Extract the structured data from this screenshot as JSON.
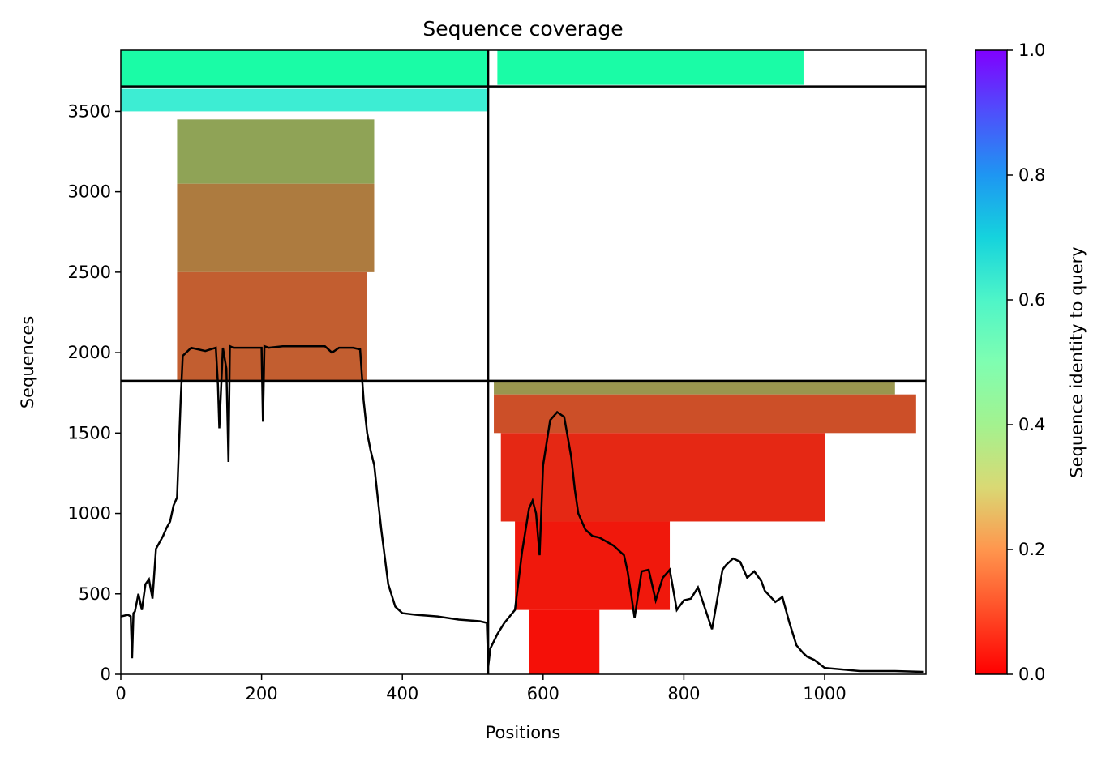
{
  "chart_data": {
    "type": "heatmap",
    "title": "Sequence coverage",
    "xlabel": "Positions",
    "ylabel": "Sequences",
    "xlim": [
      0,
      1144
    ],
    "ylim": [
      0,
      3880
    ],
    "xticks": [
      0,
      200,
      400,
      600,
      800,
      1000
    ],
    "yticks": [
      0,
      500,
      1000,
      1500,
      2000,
      2500,
      3000,
      3500
    ],
    "colorbar": {
      "label": "Sequence identity to query",
      "range": [
        0.0,
        1.0
      ],
      "ticks": [
        "0.0",
        "0.2",
        "0.4",
        "0.6",
        "0.8",
        "1.0"
      ],
      "colormap": "rainbow"
    },
    "grid": false,
    "segment_boundaries": {
      "x": [
        522
      ],
      "y": [
        1825,
        3655
      ]
    },
    "coverage_blocks": [
      {
        "x0": 0,
        "x1": 522,
        "y0": 3655,
        "y1": 3880,
        "identity": 0.45
      },
      {
        "x0": 0,
        "x1": 522,
        "y0": 3500,
        "y1": 3640,
        "identity": 0.62
      },
      {
        "x0": 80,
        "x1": 360,
        "y0": 3050,
        "y1": 3450,
        "identity": 0.22
      },
      {
        "x0": 80,
        "x1": 360,
        "y0": 2500,
        "y1": 3050,
        "identity": 0.16
      },
      {
        "x0": 80,
        "x1": 350,
        "y0": 1825,
        "y1": 2500,
        "identity": 0.12
      },
      {
        "x0": 535,
        "x1": 970,
        "y0": 3665,
        "y1": 3880,
        "identity": 0.45
      },
      {
        "x0": 530,
        "x1": 1100,
        "y0": 1740,
        "y1": 1825,
        "identity": 0.2
      },
      {
        "x0": 530,
        "x1": 1130,
        "y0": 1500,
        "y1": 1740,
        "identity": 0.1
      },
      {
        "x0": 540,
        "x1": 1000,
        "y0": 950,
        "y1": 1500,
        "identity": 0.05
      },
      {
        "x0": 560,
        "x1": 780,
        "y0": 400,
        "y1": 950,
        "identity": 0.03
      },
      {
        "x0": 580,
        "x1": 680,
        "y0": 0,
        "y1": 400,
        "identity": 0.02
      }
    ],
    "coverage_line": {
      "x": [
        0,
        10,
        14,
        16,
        18,
        20,
        25,
        30,
        35,
        40,
        45,
        50,
        55,
        60,
        65,
        70,
        75,
        80,
        85,
        88,
        100,
        120,
        135,
        138,
        140,
        145,
        150,
        153,
        155,
        160,
        180,
        200,
        202,
        204,
        210,
        230,
        250,
        270,
        290,
        300,
        310,
        330,
        340,
        345,
        350,
        355,
        360,
        365,
        370,
        380,
        390,
        400,
        420,
        450,
        480,
        510,
        520,
        522,
        525,
        535,
        545,
        560,
        570,
        580,
        585,
        590,
        595,
        600,
        610,
        620,
        630,
        640,
        645,
        650,
        660,
        670,
        680,
        700,
        715,
        720,
        725,
        730,
        740,
        750,
        760,
        770,
        780,
        790,
        800,
        810,
        820,
        840,
        850,
        855,
        860,
        870,
        880,
        890,
        900,
        910,
        915,
        930,
        940,
        950,
        960,
        970,
        975,
        985,
        1000,
        1050,
        1100,
        1140
      ],
      "y": [
        360,
        370,
        360,
        100,
        380,
        390,
        500,
        400,
        560,
        590,
        470,
        780,
        820,
        860,
        910,
        950,
        1050,
        1100,
        1700,
        1980,
        2030,
        2010,
        2030,
        1800,
        1530,
        2030,
        1900,
        1320,
        2040,
        2030,
        2030,
        2030,
        1570,
        2040,
        2030,
        2040,
        2040,
        2040,
        2040,
        2000,
        2030,
        2030,
        2020,
        1700,
        1500,
        1390,
        1300,
        1100,
        900,
        560,
        420,
        380,
        370,
        360,
        340,
        330,
        320,
        50,
        160,
        250,
        320,
        400,
        760,
        1030,
        1080,
        1000,
        740,
        1300,
        1580,
        1630,
        1600,
        1350,
        1150,
        1000,
        900,
        860,
        850,
        800,
        740,
        640,
        500,
        350,
        640,
        650,
        460,
        600,
        650,
        400,
        460,
        470,
        540,
        280,
        530,
        650,
        680,
        720,
        700,
        600,
        640,
        580,
        520,
        450,
        480,
        320,
        180,
        130,
        110,
        90,
        40,
        20,
        20,
        15
      ]
    }
  }
}
